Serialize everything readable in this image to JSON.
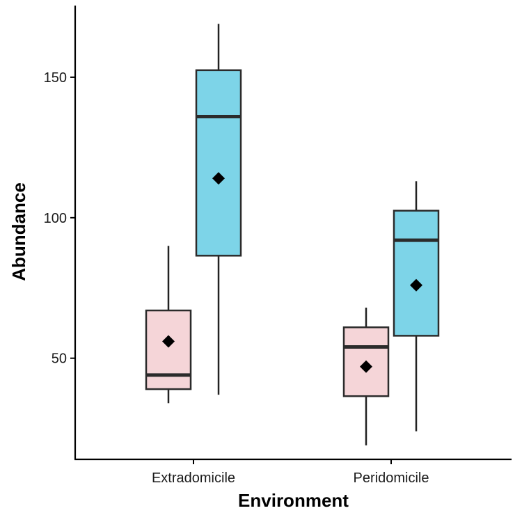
{
  "chart_data": {
    "type": "box",
    "title": "",
    "xlabel": "Environment",
    "ylabel": "Abundance",
    "categories": [
      "Extradomicile",
      "Peridomicile"
    ],
    "ylim": [
      15,
      175
    ],
    "yticks": [
      50,
      100,
      150
    ],
    "series": [
      {
        "color": "#f5d5d8",
        "boxes": [
          {
            "category": "Extradomicile",
            "whisker_low": 34,
            "q1": 39,
            "median": 44,
            "q3": 67,
            "whisker_high": 90,
            "mean": 56
          },
          {
            "category": "Peridomicile",
            "whisker_low": 19,
            "q1": 36.5,
            "median": 54,
            "q3": 61,
            "whisker_high": 68,
            "mean": 47
          }
        ]
      },
      {
        "color": "#7dd4e8",
        "boxes": [
          {
            "category": "Extradomicile",
            "whisker_low": 37,
            "q1": 86.5,
            "median": 136,
            "q3": 152.5,
            "whisker_high": 169,
            "mean": 114
          },
          {
            "category": "Peridomicile",
            "whisker_low": 24,
            "q1": 58,
            "median": 92,
            "q3": 102.5,
            "whisker_high": 113,
            "mean": 76
          }
        ]
      }
    ],
    "grid": false,
    "legend": "none"
  }
}
